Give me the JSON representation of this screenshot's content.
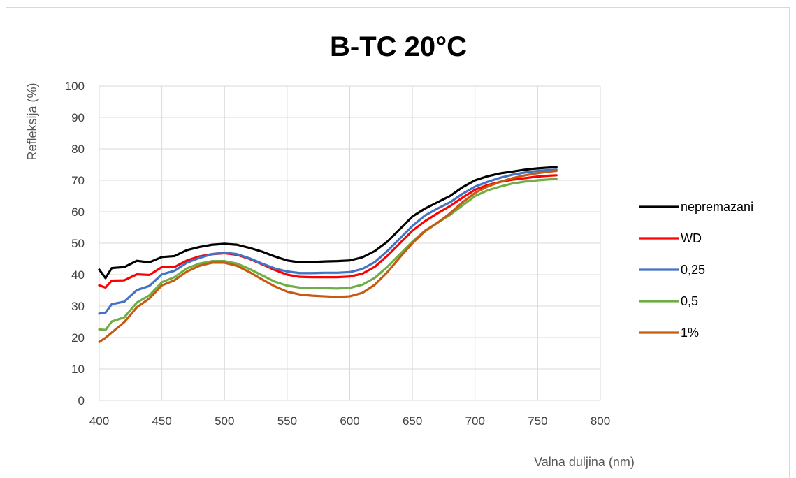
{
  "chart_data": {
    "type": "line",
    "title": "B-TC 20°C",
    "xlabel": "Valna duljina (nm)",
    "ylabel": "Refleksija (%)",
    "xlim": [
      400,
      800
    ],
    "ylim": [
      0,
      100
    ],
    "xticks": [
      400,
      450,
      500,
      550,
      600,
      650,
      700,
      750,
      800
    ],
    "yticks": [
      0,
      10,
      20,
      30,
      40,
      50,
      60,
      70,
      80,
      90,
      100
    ],
    "grid": true,
    "legend_position": "right",
    "series": [
      {
        "name": "nepremazani",
        "color": "#000000",
        "points": [
          [
            400,
            41
          ],
          [
            405,
            39.5
          ],
          [
            410,
            41.5
          ],
          [
            420,
            43
          ],
          [
            430,
            43.8
          ],
          [
            440,
            44.5
          ],
          [
            450,
            45
          ],
          [
            460,
            46.5
          ],
          [
            470,
            47.8
          ],
          [
            480,
            48.8
          ],
          [
            490,
            49.5
          ],
          [
            500,
            49.8
          ],
          [
            510,
            49.5
          ],
          [
            520,
            48.5
          ],
          [
            530,
            47.3
          ],
          [
            540,
            45.8
          ],
          [
            550,
            44.5
          ],
          [
            560,
            43.9
          ],
          [
            570,
            44
          ],
          [
            580,
            44.2
          ],
          [
            590,
            44.3
          ],
          [
            600,
            44.5
          ],
          [
            610,
            45.5
          ],
          [
            620,
            47.5
          ],
          [
            630,
            50.5
          ],
          [
            640,
            54.5
          ],
          [
            650,
            58.5
          ],
          [
            660,
            61
          ],
          [
            670,
            63
          ],
          [
            680,
            65
          ],
          [
            690,
            67.8
          ],
          [
            700,
            70
          ],
          [
            710,
            71.3
          ],
          [
            720,
            72.2
          ],
          [
            730,
            72.8
          ],
          [
            740,
            73.4
          ],
          [
            750,
            73.8
          ],
          [
            760,
            74.1
          ],
          [
            765,
            74.2
          ]
        ]
      },
      {
        "name": "WD",
        "color": "#ff0000",
        "points": [
          [
            400,
            36
          ],
          [
            405,
            36.5
          ],
          [
            410,
            37.5
          ],
          [
            420,
            38.8
          ],
          [
            430,
            39.5
          ],
          [
            440,
            40.5
          ],
          [
            450,
            41.8
          ],
          [
            460,
            43
          ],
          [
            470,
            44.5
          ],
          [
            480,
            45.8
          ],
          [
            490,
            46.5
          ],
          [
            500,
            46.8
          ],
          [
            510,
            46.3
          ],
          [
            520,
            45
          ],
          [
            530,
            43.3
          ],
          [
            540,
            41.5
          ],
          [
            550,
            40
          ],
          [
            560,
            39.3
          ],
          [
            570,
            39.2
          ],
          [
            580,
            39.2
          ],
          [
            590,
            39.2
          ],
          [
            600,
            39.4
          ],
          [
            610,
            40.3
          ],
          [
            620,
            42.5
          ],
          [
            630,
            46
          ],
          [
            640,
            50
          ],
          [
            650,
            54
          ],
          [
            660,
            57
          ],
          [
            670,
            59.5
          ],
          [
            680,
            61.8
          ],
          [
            690,
            64.5
          ],
          [
            700,
            67
          ],
          [
            710,
            68.5
          ],
          [
            720,
            69.5
          ],
          [
            730,
            70.2
          ],
          [
            740,
            70.7
          ],
          [
            750,
            71.2
          ],
          [
            760,
            71.5
          ],
          [
            765,
            71.6
          ]
        ]
      },
      {
        "name": "0,25",
        "color": "#4472c4",
        "points": [
          [
            400,
            27
          ],
          [
            405,
            28.5
          ],
          [
            410,
            30
          ],
          [
            420,
            32
          ],
          [
            430,
            34.5
          ],
          [
            440,
            37
          ],
          [
            450,
            39.5
          ],
          [
            460,
            41.8
          ],
          [
            470,
            43.8
          ],
          [
            480,
            45.3
          ],
          [
            490,
            46.5
          ],
          [
            500,
            47
          ],
          [
            510,
            46.5
          ],
          [
            520,
            45.2
          ],
          [
            530,
            43.5
          ],
          [
            540,
            42
          ],
          [
            550,
            41
          ],
          [
            560,
            40.5
          ],
          [
            570,
            40.5
          ],
          [
            580,
            40.6
          ],
          [
            590,
            40.6
          ],
          [
            600,
            40.8
          ],
          [
            610,
            41.8
          ],
          [
            620,
            44
          ],
          [
            630,
            47.5
          ],
          [
            640,
            51.5
          ],
          [
            650,
            55.5
          ],
          [
            660,
            58.8
          ],
          [
            670,
            61
          ],
          [
            680,
            63
          ],
          [
            690,
            65.7
          ],
          [
            700,
            68
          ],
          [
            710,
            69.5
          ],
          [
            720,
            70.8
          ],
          [
            730,
            71.8
          ],
          [
            740,
            72.5
          ],
          [
            750,
            73
          ],
          [
            760,
            73.3
          ],
          [
            765,
            73.4
          ]
        ]
      },
      {
        "name": "0,5",
        "color": "#70ad47",
        "points": [
          [
            400,
            22
          ],
          [
            405,
            23
          ],
          [
            410,
            24.5
          ],
          [
            420,
            27
          ],
          [
            430,
            30.5
          ],
          [
            440,
            34
          ],
          [
            450,
            37
          ],
          [
            460,
            39.8
          ],
          [
            470,
            42
          ],
          [
            480,
            43.5
          ],
          [
            490,
            44.3
          ],
          [
            500,
            44.3
          ],
          [
            510,
            43.5
          ],
          [
            520,
            41.8
          ],
          [
            530,
            39.8
          ],
          [
            540,
            37.8
          ],
          [
            550,
            36.5
          ],
          [
            560,
            35.9
          ],
          [
            570,
            35.8
          ],
          [
            580,
            35.7
          ],
          [
            590,
            35.6
          ],
          [
            600,
            35.8
          ],
          [
            610,
            36.8
          ],
          [
            620,
            39
          ],
          [
            630,
            42.5
          ],
          [
            640,
            46.5
          ],
          [
            650,
            50.5
          ],
          [
            660,
            54
          ],
          [
            670,
            56.5
          ],
          [
            680,
            59
          ],
          [
            690,
            62
          ],
          [
            700,
            65
          ],
          [
            710,
            66.8
          ],
          [
            720,
            68
          ],
          [
            730,
            69
          ],
          [
            740,
            69.6
          ],
          [
            750,
            70
          ],
          [
            760,
            70.3
          ],
          [
            765,
            70.4
          ]
        ]
      },
      {
        "name": "1%",
        "color": "#c55a11",
        "points": [
          [
            400,
            18
          ],
          [
            405,
            20.5
          ],
          [
            410,
            21
          ],
          [
            420,
            25.5
          ],
          [
            430,
            29
          ],
          [
            440,
            33
          ],
          [
            450,
            36
          ],
          [
            460,
            38.8
          ],
          [
            470,
            41
          ],
          [
            480,
            42.8
          ],
          [
            490,
            43.8
          ],
          [
            500,
            43.8
          ],
          [
            510,
            42.8
          ],
          [
            520,
            40.8
          ],
          [
            530,
            38.5
          ],
          [
            540,
            36.3
          ],
          [
            550,
            34.6
          ],
          [
            560,
            33.7
          ],
          [
            570,
            33.3
          ],
          [
            580,
            33.1
          ],
          [
            590,
            32.9
          ],
          [
            600,
            33.1
          ],
          [
            610,
            34.2
          ],
          [
            620,
            36.8
          ],
          [
            630,
            40.8
          ],
          [
            640,
            45.5
          ],
          [
            650,
            50
          ],
          [
            660,
            53.8
          ],
          [
            670,
            56.5
          ],
          [
            680,
            59.5
          ],
          [
            690,
            63
          ],
          [
            700,
            66
          ],
          [
            710,
            68
          ],
          [
            720,
            69.5
          ],
          [
            730,
            70.7
          ],
          [
            740,
            71.6
          ],
          [
            750,
            72.3
          ],
          [
            760,
            72.8
          ],
          [
            765,
            73
          ]
        ]
      }
    ]
  }
}
